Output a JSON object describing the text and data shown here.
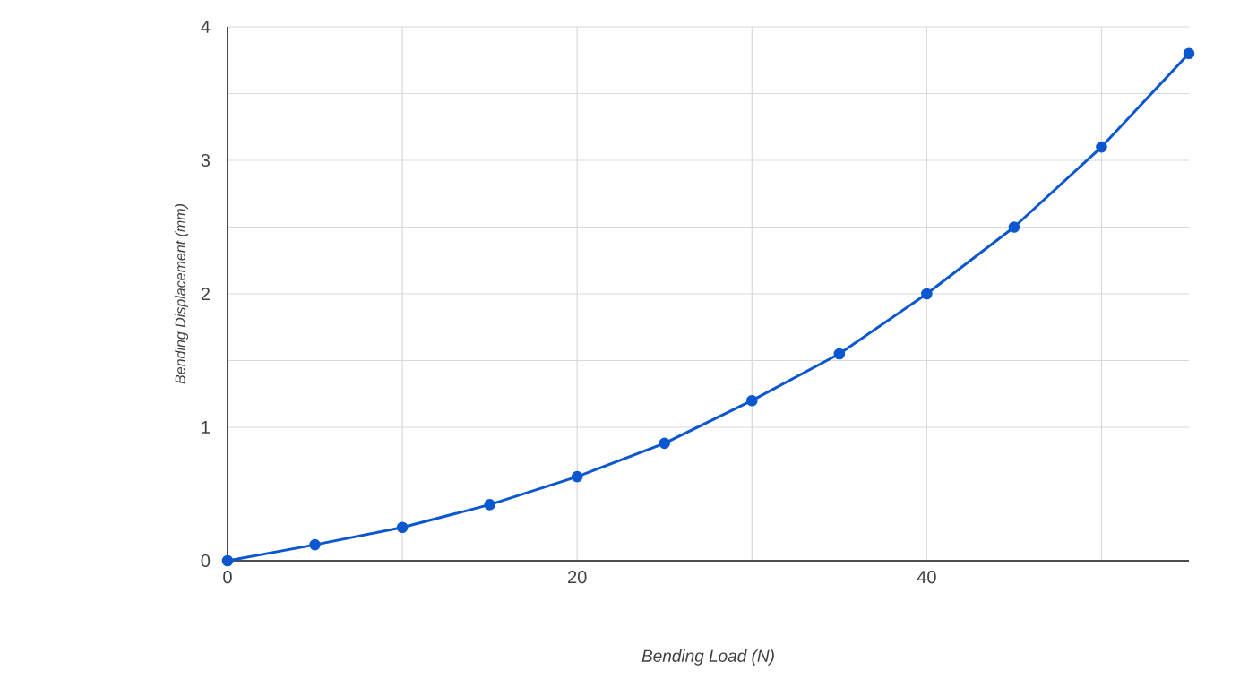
{
  "chart_data": {
    "type": "line",
    "xlabel": "Bending Load (N)",
    "ylabel": "Bending Displacement (mm)",
    "x": [
      0,
      5,
      10,
      15,
      20,
      25,
      30,
      35,
      40,
      45,
      50,
      55
    ],
    "series": [
      {
        "color": "#0b57d0",
        "values": [
          0,
          0.12,
          0.25,
          0.42,
          0.63,
          0.88,
          1.2,
          1.55,
          2.0,
          2.5,
          3.1,
          3.8
        ]
      }
    ],
    "xlim": [
      0,
      55
    ],
    "ylim": [
      0,
      4
    ],
    "xticks": [
      0,
      {
        "value": 10,
        "label": null
      },
      20,
      {
        "value": 30,
        "label": null
      },
      40,
      {
        "value": 50,
        "label": null
      }
    ],
    "yticks": [
      0,
      {
        "value": 0.5,
        "label": null
      },
      1,
      {
        "value": 1.5,
        "label": null
      },
      2,
      {
        "value": 2.5,
        "label": null
      },
      3,
      {
        "value": 3.5,
        "label": null
      },
      4
    ],
    "grid": true,
    "marker": "circle",
    "line_style": "solid"
  }
}
